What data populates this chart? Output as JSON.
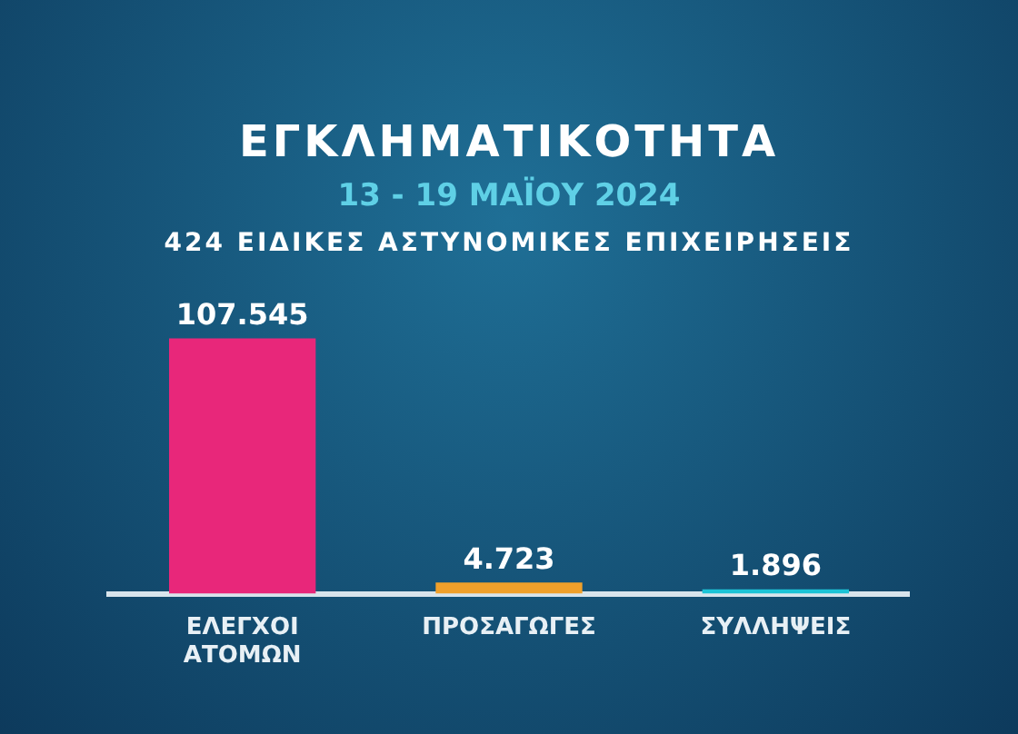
{
  "chart_data": {
    "type": "bar",
    "title": "ΕΓΚΛΗΜΑΤΙΚΟΤΗΤΑ",
    "subtitle": "13 - 19 ΜΑΪΟΥ 2024",
    "annotations": [
      "424 ΕΙΔΙΚΕΣ ΑΣΤΥΝΟΜΙΚΕΣ ΕΠΙΧΕΙΡΗΣΕΙΣ"
    ],
    "categories": [
      "ΕΛΕΓΧΟΙ ΑΤΟΜΩΝ",
      "ΠΡΟΣΑΓΩΓΕΣ",
      "ΣΥΛΛΗΨΕΙΣ"
    ],
    "values": [
      107545,
      4723,
      1896
    ],
    "value_labels": [
      "107.545",
      "4.723",
      "1.896"
    ],
    "colors": [
      "#e8277a",
      "#f0a02a",
      "#1cc3d6"
    ],
    "grid": false,
    "legend": false
  }
}
